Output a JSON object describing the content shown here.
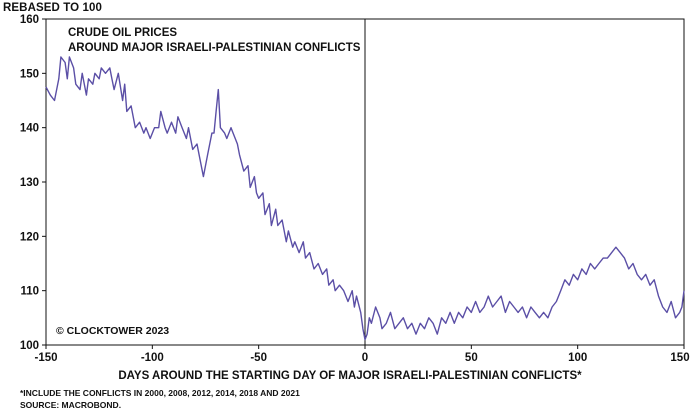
{
  "chart_data": {
    "type": "line",
    "title_lines": [
      "CRUDE OIL PRICES",
      "AROUND MAJOR ISRAELI-PALESTINIAN CONFLICTS"
    ],
    "ylabel": "REBASED TO 100",
    "xlabel": "DAYS AROUND THE STARTING DAY OF MAJOR ISRAELI-PALESTINIAN CONFLICTS*",
    "xlim": [
      -150,
      150
    ],
    "ylim": [
      100,
      160
    ],
    "xticks": [
      -150,
      -100,
      -50,
      0,
      50,
      100,
      150
    ],
    "yticks": [
      100,
      110,
      120,
      130,
      140,
      150,
      160
    ],
    "grid": false,
    "legend": "none",
    "vertical_reference_line_x": 0,
    "series": [
      {
        "color": "#5b4fa6",
        "points": [
          [
            -150,
            147.5
          ],
          [
            -148,
            146
          ],
          [
            -146,
            145
          ],
          [
            -144,
            149
          ],
          [
            -143,
            153
          ],
          [
            -141,
            152
          ],
          [
            -140,
            149
          ],
          [
            -139,
            153
          ],
          [
            -137,
            151
          ],
          [
            -136,
            148
          ],
          [
            -134,
            147
          ],
          [
            -133,
            150
          ],
          [
            -131,
            146
          ],
          [
            -130,
            149
          ],
          [
            -128,
            148
          ],
          [
            -127,
            150
          ],
          [
            -125,
            149
          ],
          [
            -124,
            151
          ],
          [
            -122,
            150
          ],
          [
            -120,
            151
          ],
          [
            -119,
            149
          ],
          [
            -118,
            147
          ],
          [
            -116,
            150
          ],
          [
            -114,
            145
          ],
          [
            -113,
            148
          ],
          [
            -112,
            143
          ],
          [
            -110,
            144
          ],
          [
            -108,
            140
          ],
          [
            -106,
            141
          ],
          [
            -104,
            139
          ],
          [
            -103,
            140
          ],
          [
            -101,
            138
          ],
          [
            -99,
            140
          ],
          [
            -97,
            140
          ],
          [
            -96,
            143
          ],
          [
            -94,
            140
          ],
          [
            -93,
            139
          ],
          [
            -91,
            141
          ],
          [
            -89,
            139
          ],
          [
            -88,
            142
          ],
          [
            -86,
            140
          ],
          [
            -84,
            138
          ],
          [
            -83,
            140
          ],
          [
            -81,
            136
          ],
          [
            -79,
            137
          ],
          [
            -78,
            135
          ],
          [
            -76,
            131
          ],
          [
            -74,
            135
          ],
          [
            -72,
            139
          ],
          [
            -71,
            139
          ],
          [
            -70,
            143
          ],
          [
            -69,
            147
          ],
          [
            -68,
            140
          ],
          [
            -66,
            139
          ],
          [
            -65,
            138
          ],
          [
            -63,
            140
          ],
          [
            -62,
            139
          ],
          [
            -60,
            137
          ],
          [
            -59,
            135
          ],
          [
            -57,
            132
          ],
          [
            -55,
            133
          ],
          [
            -54,
            129
          ],
          [
            -52,
            131
          ],
          [
            -51,
            128
          ],
          [
            -50,
            127
          ],
          [
            -48,
            128
          ],
          [
            -47,
            124
          ],
          [
            -45,
            126
          ],
          [
            -44,
            122
          ],
          [
            -42,
            125
          ],
          [
            -41,
            122
          ],
          [
            -39,
            123
          ],
          [
            -37,
            119
          ],
          [
            -36,
            121
          ],
          [
            -34,
            118
          ],
          [
            -33,
            119
          ],
          [
            -31,
            117
          ],
          [
            -29,
            119
          ],
          [
            -28,
            116
          ],
          [
            -26,
            117
          ],
          [
            -24,
            114
          ],
          [
            -22,
            115
          ],
          [
            -20,
            113
          ],
          [
            -18,
            114
          ],
          [
            -17,
            111
          ],
          [
            -15,
            112
          ],
          [
            -14,
            110
          ],
          [
            -12,
            111
          ],
          [
            -10,
            110
          ],
          [
            -8,
            108
          ],
          [
            -6,
            110
          ],
          [
            -5,
            107
          ],
          [
            -4,
            109
          ],
          [
            -2,
            106
          ],
          [
            -1,
            103
          ],
          [
            0,
            101
          ],
          [
            1,
            102
          ],
          [
            2,
            105
          ],
          [
            3,
            104
          ],
          [
            5,
            107
          ],
          [
            7,
            105
          ],
          [
            8,
            103
          ],
          [
            10,
            104
          ],
          [
            12,
            106
          ],
          [
            14,
            103
          ],
          [
            16,
            104
          ],
          [
            18,
            105
          ],
          [
            20,
            103
          ],
          [
            22,
            104
          ],
          [
            24,
            102
          ],
          [
            26,
            104
          ],
          [
            28,
            103
          ],
          [
            30,
            105
          ],
          [
            32,
            104
          ],
          [
            34,
            102
          ],
          [
            36,
            105
          ],
          [
            38,
            104
          ],
          [
            40,
            106
          ],
          [
            42,
            104
          ],
          [
            44,
            106
          ],
          [
            46,
            105
          ],
          [
            48,
            107
          ],
          [
            50,
            106
          ],
          [
            52,
            108
          ],
          [
            54,
            106
          ],
          [
            56,
            107
          ],
          [
            58,
            109
          ],
          [
            60,
            107
          ],
          [
            62,
            108
          ],
          [
            64,
            109
          ],
          [
            66,
            106
          ],
          [
            68,
            108
          ],
          [
            70,
            107
          ],
          [
            72,
            106
          ],
          [
            74,
            107
          ],
          [
            76,
            105
          ],
          [
            78,
            107
          ],
          [
            80,
            106
          ],
          [
            82,
            105
          ],
          [
            84,
            106
          ],
          [
            86,
            105
          ],
          [
            88,
            107
          ],
          [
            90,
            108
          ],
          [
            92,
            110
          ],
          [
            94,
            112
          ],
          [
            96,
            111
          ],
          [
            98,
            113
          ],
          [
            100,
            112
          ],
          [
            102,
            114
          ],
          [
            104,
            113
          ],
          [
            106,
            115
          ],
          [
            108,
            114
          ],
          [
            110,
            115
          ],
          [
            112,
            116
          ],
          [
            114,
            116
          ],
          [
            116,
            117
          ],
          [
            118,
            118
          ],
          [
            120,
            117
          ],
          [
            122,
            116
          ],
          [
            124,
            114
          ],
          [
            126,
            115
          ],
          [
            128,
            113
          ],
          [
            130,
            112
          ],
          [
            132,
            113
          ],
          [
            134,
            111
          ],
          [
            136,
            112
          ],
          [
            138,
            109
          ],
          [
            140,
            107
          ],
          [
            142,
            106
          ],
          [
            144,
            108
          ],
          [
            146,
            105
          ],
          [
            148,
            106
          ],
          [
            149,
            107
          ],
          [
            150,
            110
          ]
        ]
      }
    ],
    "annotations": [
      "© CLOCKTOWER 2023"
    ]
  },
  "footnotes": [
    "*INCLUDE THE CONFLICTS IN 2000, 2008, 2012, 2014, 2018 AND 2021",
    "SOURCE: MACROBOND."
  ]
}
